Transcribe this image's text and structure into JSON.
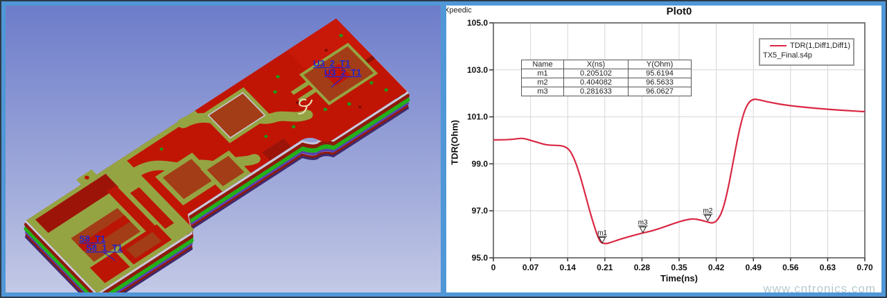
{
  "window": {
    "brand": "Xpeedic",
    "watermark": "www.cntronics.com",
    "frame_color": "#4f97d7"
  },
  "pcb_view": {
    "description": "3D PCB board model, isometric view",
    "labels": [
      {
        "text": "U3_2_T1"
      },
      {
        "text": "U3_2_T1"
      },
      {
        "text": "S8_T1"
      },
      {
        "text": "S8_1_T1"
      }
    ],
    "colors": {
      "background_top": "#6d7cca",
      "background_bottom": "#c3c9e6",
      "copper": "#c01505",
      "soldermask": "#95a442",
      "pad": "#a33d17",
      "dark_copper": "#9c1408",
      "layer_green": "#24b01a",
      "layer_purple": "#5b3fb5",
      "label_blue": "#2323cf"
    }
  },
  "plot": {
    "title": "Plot0",
    "xlabel": "Time(ns)",
    "ylabel": "TDR(Ohm)",
    "legend": {
      "series": "TDR(1,Diff1,Diff1)",
      "file": "TX5_Final.s4p"
    },
    "marker_table": {
      "headers": [
        "Name",
        "X(ns)",
        "Y(Ohm)"
      ],
      "rows": [
        [
          "m1",
          "0.205102",
          "95.6194"
        ],
        [
          "m2",
          "0.404082",
          "96.5633"
        ],
        [
          "m3",
          "0.281633",
          "96.0627"
        ]
      ]
    }
  },
  "chart_data": {
    "type": "line",
    "title": "Plot0",
    "xlabel": "Time(ns)",
    "ylabel": "TDR(Ohm)",
    "xlim": [
      0,
      0.7
    ],
    "ylim": [
      95.0,
      105.0
    ],
    "grid": true,
    "legend_position": "top-right",
    "x_ticks": [
      0,
      0.07,
      0.14,
      0.21,
      0.28,
      0.35,
      0.42,
      0.49,
      0.56,
      0.63,
      0.7
    ],
    "x_tick_labels": [
      "0",
      "0.07",
      "0.14",
      "0.21",
      "0.28",
      "0.35",
      "0.42",
      "0.49",
      "0.56",
      "0.63",
      "0.70"
    ],
    "y_ticks": [
      105,
      103,
      101,
      99,
      97,
      95
    ],
    "y_tick_labels": [
      "105.0",
      "103.0",
      "101.0",
      "99.0",
      "97.0",
      "95.0"
    ],
    "series": [
      {
        "name": "TDR(1,Diff1,Diff1)",
        "color": "#da2742",
        "points": [
          [
            0.0,
            100.02
          ],
          [
            0.02,
            100.02
          ],
          [
            0.04,
            100.05
          ],
          [
            0.055,
            100.1
          ],
          [
            0.07,
            100.0
          ],
          [
            0.085,
            99.9
          ],
          [
            0.1,
            99.8
          ],
          [
            0.115,
            99.79
          ],
          [
            0.13,
            99.77
          ],
          [
            0.142,
            99.65
          ],
          [
            0.152,
            99.25
          ],
          [
            0.162,
            98.6
          ],
          [
            0.172,
            97.8
          ],
          [
            0.182,
            96.95
          ],
          [
            0.192,
            96.2
          ],
          [
            0.2,
            95.72
          ],
          [
            0.2051,
            95.62
          ],
          [
            0.213,
            95.6
          ],
          [
            0.222,
            95.66
          ],
          [
            0.24,
            95.8
          ],
          [
            0.26,
            95.93
          ],
          [
            0.2816,
            96.06
          ],
          [
            0.3,
            96.15
          ],
          [
            0.32,
            96.3
          ],
          [
            0.345,
            96.5
          ],
          [
            0.365,
            96.63
          ],
          [
            0.378,
            96.66
          ],
          [
            0.392,
            96.6
          ],
          [
            0.4041,
            96.52
          ],
          [
            0.413,
            96.47
          ],
          [
            0.422,
            96.58
          ],
          [
            0.432,
            97.0
          ],
          [
            0.442,
            97.9
          ],
          [
            0.452,
            99.1
          ],
          [
            0.462,
            100.3
          ],
          [
            0.472,
            101.2
          ],
          [
            0.481,
            101.62
          ],
          [
            0.49,
            101.76
          ],
          [
            0.5,
            101.73
          ],
          [
            0.52,
            101.62
          ],
          [
            0.55,
            101.5
          ],
          [
            0.59,
            101.4
          ],
          [
            0.63,
            101.32
          ],
          [
            0.67,
            101.26
          ],
          [
            0.7,
            101.22
          ]
        ]
      }
    ],
    "markers": [
      {
        "name": "m1",
        "x": 0.205102,
        "y": 95.6194
      },
      {
        "name": "m2",
        "x": 0.404082,
        "y": 96.5633
      },
      {
        "name": "m3",
        "x": 0.281633,
        "y": 96.0627
      }
    ]
  }
}
